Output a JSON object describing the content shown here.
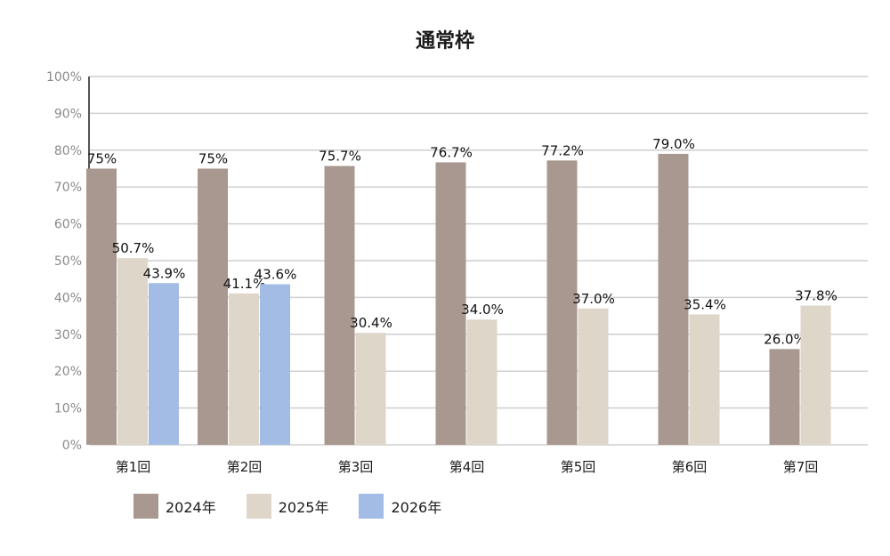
{
  "chart_data": {
    "type": "bar",
    "title": "通常枠",
    "xlabel": "",
    "ylabel": "",
    "ylim": [
      0,
      100
    ],
    "yticks": [
      "0%",
      "10%",
      "20%",
      "30%",
      "40%",
      "50%",
      "60%",
      "70%",
      "80%",
      "90%",
      "100%"
    ],
    "grid": true,
    "legend_position": "bottom-left",
    "categories": [
      "第1回",
      "第2回",
      "第3回",
      "第4回",
      "第5回",
      "第6回",
      "第7回"
    ],
    "series": [
      {
        "name": "2024年",
        "color": "#a89890",
        "values": [
          75,
          75,
          75.7,
          76.7,
          77.2,
          79.0,
          26.0
        ],
        "labels": [
          "75%",
          "75%",
          "75.7%",
          "76.7%",
          "77.2%",
          "79.0%",
          "26.0%"
        ]
      },
      {
        "name": "2025年",
        "color": "#ded6c8",
        "values": [
          50.7,
          41.1,
          30.4,
          34.0,
          37.0,
          35.4,
          37.8
        ],
        "labels": [
          "50.7%",
          "41.1%",
          "30.4%",
          "34.0%",
          "37.0%",
          "35.4%",
          "37.8%"
        ]
      },
      {
        "name": "2026年",
        "color": "#a2bce6",
        "values": [
          43.9,
          43.6,
          null,
          null,
          null,
          null,
          null
        ],
        "labels": [
          "43.9%",
          "43.6%",
          null,
          null,
          null,
          null,
          null
        ]
      }
    ]
  }
}
